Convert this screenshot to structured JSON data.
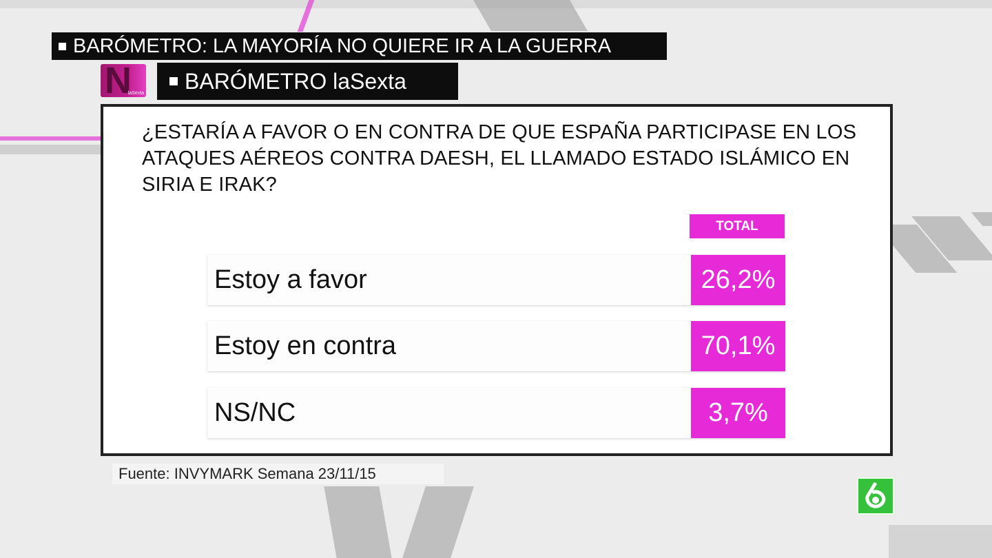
{
  "headline": "BARÓMETRO: LA MAYORÍA NO QUIERE IR A LA GUERRA",
  "program_logo": {
    "letter": "N",
    "small_text": "laSexta"
  },
  "program_title": "BARÓMETRO laSexta",
  "question": "¿ESTARÍA A FAVOR O EN CONTRA DE QUE ESPAÑA PARTICIPASE EN LOS ATAQUES AÉREOS CONTRA DAESH, EL LLAMADO ESTADO ISLÁMICO EN SIRIA E IRAK?",
  "column_header": "TOTAL",
  "results": [
    {
      "label": "Estoy a favor",
      "value": "26,2%"
    },
    {
      "label": "Estoy en contra",
      "value": "70,1%"
    },
    {
      "label": "NS/NC",
      "value": "3,7%"
    }
  ],
  "source": "Fuente: INVYMARK Semana 23/11/15",
  "colors": {
    "accent": "#e62ad8",
    "dark_bar": "#0d0d0d",
    "channel_green": "#36c13c"
  },
  "icons": {
    "channel_logo": "la6-logo-icon"
  }
}
